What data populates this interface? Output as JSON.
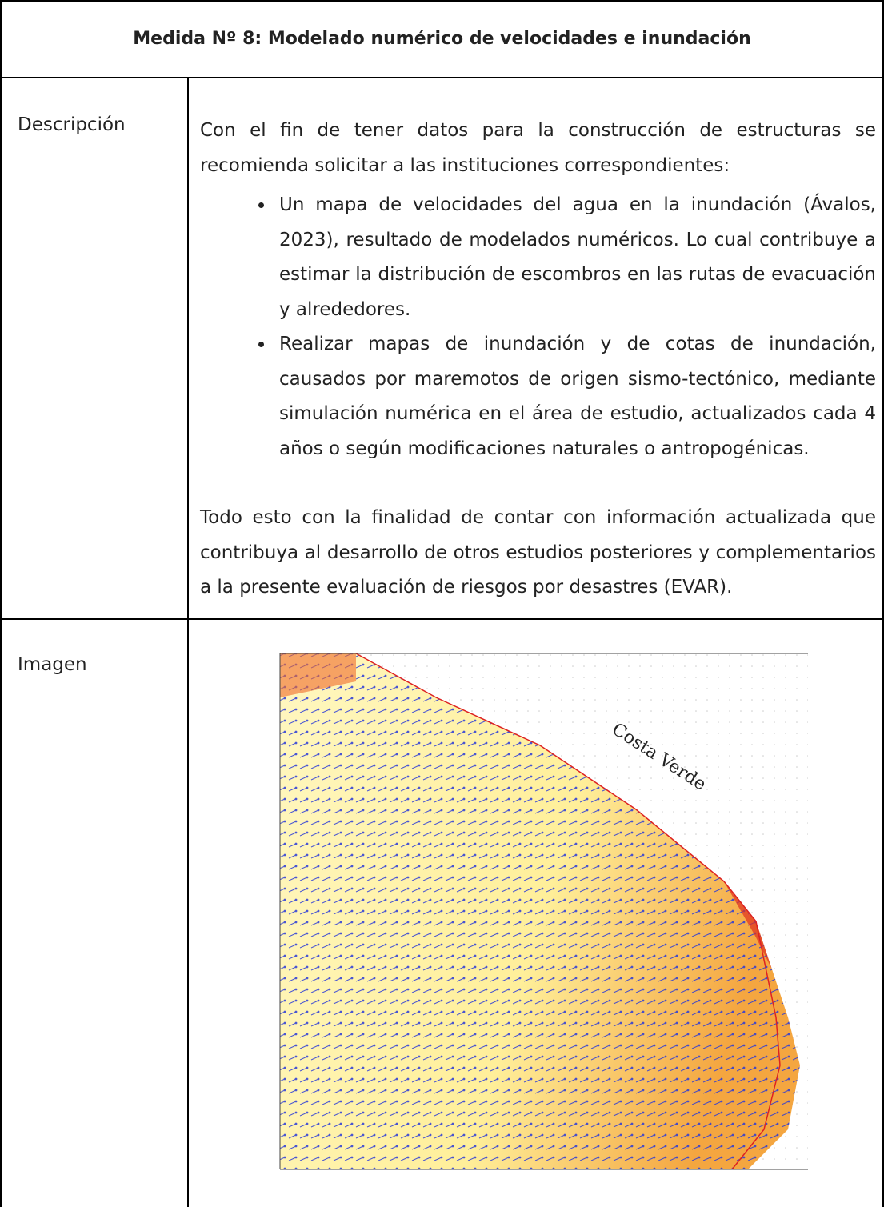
{
  "table": {
    "title": "Medida Nº 8: Modelado numérico de velocidades e inundación",
    "rows": [
      {
        "label": "Descripción",
        "intro": "Con el fin de tener datos para la construcción de estructuras se recomienda solicitar a las instituciones correspondientes:",
        "bullets": [
          "Un mapa de velocidades del agua en la inundación (Ávalos, 2023), resultado de modelados numéricos. Lo cual contribuye a estimar la distribución de escombros en las rutas de evacuación y alrededores.",
          "Realizar mapas de inundación y de cotas de inundación, causados por maremotos de origen sismo-tectónico, mediante simulación numérica en el área de estudio, actualizados cada 4 años o según modificaciones naturales o antropogénicas."
        ],
        "closing": "Todo esto con la finalidad de contar con información actualizada que contribuya al desarrollo de otros estudios posteriores y complementarios a la presente evaluación de riesgos por desastres (EVAR)."
      },
      {
        "label": "Imagen",
        "image_caption": "Costa Verde"
      }
    ]
  }
}
